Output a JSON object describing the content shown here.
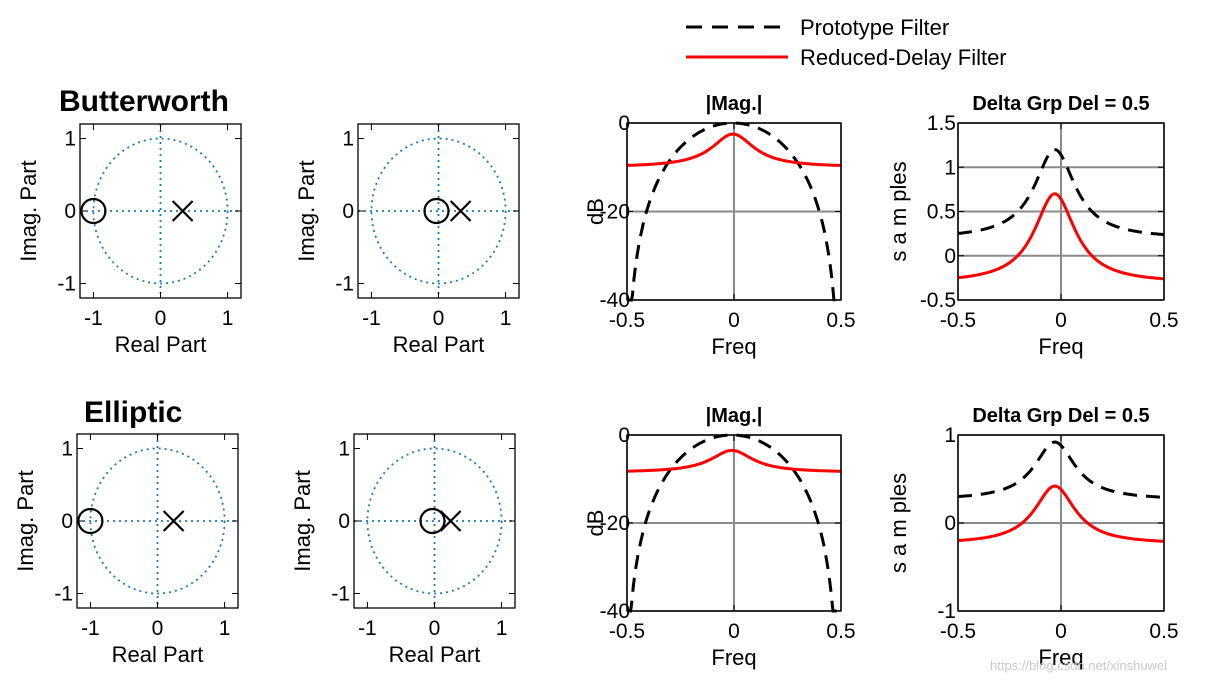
{
  "legend": {
    "prototype_label": "Prototype Filter",
    "reduced_label": "Reduced-Delay Filter",
    "prototype_color": "#000000",
    "reduced_color": "#ff0000"
  },
  "rows": [
    {
      "title": "Butterworth"
    },
    {
      "title": "Elliptic"
    }
  ],
  "pz_axis": {
    "xlabel": "Real Part",
    "ylabel": "Imag. Part"
  },
  "mag_axis": {
    "title": "|Mag.|",
    "xlabel": "Freq",
    "ylabel": "dB"
  },
  "gd_axis": {
    "title": "Delta Grp Del = 0.5",
    "xlabel": "Freq",
    "ylabel": "s a m ples"
  },
  "circle_color": "#1f77b4",
  "watermark": "https://blog.csdn.net/xinshuwei",
  "chart_data": [
    {
      "type": "scatter",
      "name": "pz-butterworth-prototype",
      "title": "Butterworth",
      "xlabel": "Real Part",
      "ylabel": "Imag. Part",
      "xlim": [
        -1.2,
        1.2
      ],
      "ylim": [
        -1.2,
        1.2
      ],
      "xticks": [
        -1,
        0,
        1
      ],
      "yticks": [
        -1,
        0,
        1
      ],
      "zeros": [
        [
          -1,
          0
        ]
      ],
      "poles": [
        [
          0.33,
          0
        ]
      ]
    },
    {
      "type": "scatter",
      "name": "pz-butterworth-reduced",
      "xlabel": "Real Part",
      "ylabel": "Imag. Part",
      "xlim": [
        -1.2,
        1.2
      ],
      "ylim": [
        -1.2,
        1.2
      ],
      "xticks": [
        -1,
        0,
        1
      ],
      "yticks": [
        -1,
        0,
        1
      ],
      "zeros": [
        [
          -0.03,
          0
        ]
      ],
      "poles": [
        [
          0.33,
          0
        ]
      ]
    },
    {
      "type": "line",
      "name": "mag-butterworth",
      "title": "|Mag.|",
      "xlabel": "Freq",
      "ylabel": "dB",
      "xlim": [
        -0.5,
        0.5
      ],
      "ylim": [
        -40,
        0
      ],
      "xticks": [
        -0.5,
        0,
        0.5
      ],
      "yticks": [
        0,
        -20,
        -40
      ],
      "series": [
        {
          "name": "Prototype Filter",
          "kind": "proto",
          "center": -0.005,
          "peak": 0,
          "edge": -40
        },
        {
          "name": "Reduced-Delay Filter",
          "kind": "reduced",
          "center": -0.005,
          "peak": -2.5,
          "edge": -10
        }
      ]
    },
    {
      "type": "line",
      "name": "gd-butterworth",
      "title": "Delta Grp Del = 0.5",
      "xlabel": "Freq",
      "ylabel": "s a m ples",
      "xlim": [
        -0.5,
        0.5
      ],
      "ylim": [
        -0.5,
        1.5
      ],
      "xticks": [
        -0.5,
        0,
        0.5
      ],
      "yticks": [
        1.5,
        1,
        0.5,
        0,
        -0.5
      ],
      "series": [
        {
          "name": "Prototype Filter",
          "center": -0.03,
          "peak": 1.2,
          "edge": 0.19
        },
        {
          "name": "Reduced-Delay Filter",
          "center": -0.03,
          "peak": 0.7,
          "edge": -0.31
        }
      ]
    },
    {
      "type": "scatter",
      "name": "pz-elliptic-prototype",
      "title": "Elliptic",
      "xlabel": "Real Part",
      "ylabel": "Imag. Part",
      "xlim": [
        -1.2,
        1.2
      ],
      "ylim": [
        -1.2,
        1.2
      ],
      "xticks": [
        -1,
        0,
        1
      ],
      "yticks": [
        -1,
        0,
        1
      ],
      "zeros": [
        [
          -1,
          0
        ]
      ],
      "poles": [
        [
          0.24,
          0
        ]
      ]
    },
    {
      "type": "scatter",
      "name": "pz-elliptic-reduced",
      "xlabel": "Real Part",
      "ylabel": "Imag. Part",
      "xlim": [
        -1.2,
        1.2
      ],
      "ylim": [
        -1.2,
        1.2
      ],
      "xticks": [
        -1,
        0,
        1
      ],
      "yticks": [
        -1,
        0,
        1
      ],
      "zeros": [
        [
          -0.03,
          0
        ]
      ],
      "poles": [
        [
          0.24,
          0
        ]
      ]
    },
    {
      "type": "line",
      "name": "mag-elliptic",
      "title": "|Mag.|",
      "xlabel": "Freq",
      "ylabel": "dB",
      "xlim": [
        -0.5,
        0.5
      ],
      "ylim": [
        -40,
        0
      ],
      "xticks": [
        -0.5,
        0,
        0.5
      ],
      "yticks": [
        0,
        -20,
        -40
      ],
      "series": [
        {
          "name": "Prototype Filter",
          "kind": "proto",
          "center": -0.01,
          "peak": 0,
          "edge": -40
        },
        {
          "name": "Reduced-Delay Filter",
          "kind": "reduced",
          "center": -0.01,
          "peak": -3.5,
          "edge": -8.5
        }
      ]
    },
    {
      "type": "line",
      "name": "gd-elliptic",
      "title": "Delta Grp Del = 0.5",
      "xlabel": "Freq",
      "ylabel": "s a m ples",
      "xlim": [
        -0.5,
        0.5
      ],
      "ylim": [
        -1,
        1
      ],
      "xticks": [
        -0.5,
        0,
        0.5
      ],
      "yticks": [
        1,
        0,
        -1
      ],
      "series": [
        {
          "name": "Prototype Filter",
          "center": -0.03,
          "peak": 0.92,
          "edge": 0.26
        },
        {
          "name": "Reduced-Delay Filter",
          "center": -0.03,
          "peak": 0.42,
          "edge": -0.24
        }
      ]
    }
  ]
}
